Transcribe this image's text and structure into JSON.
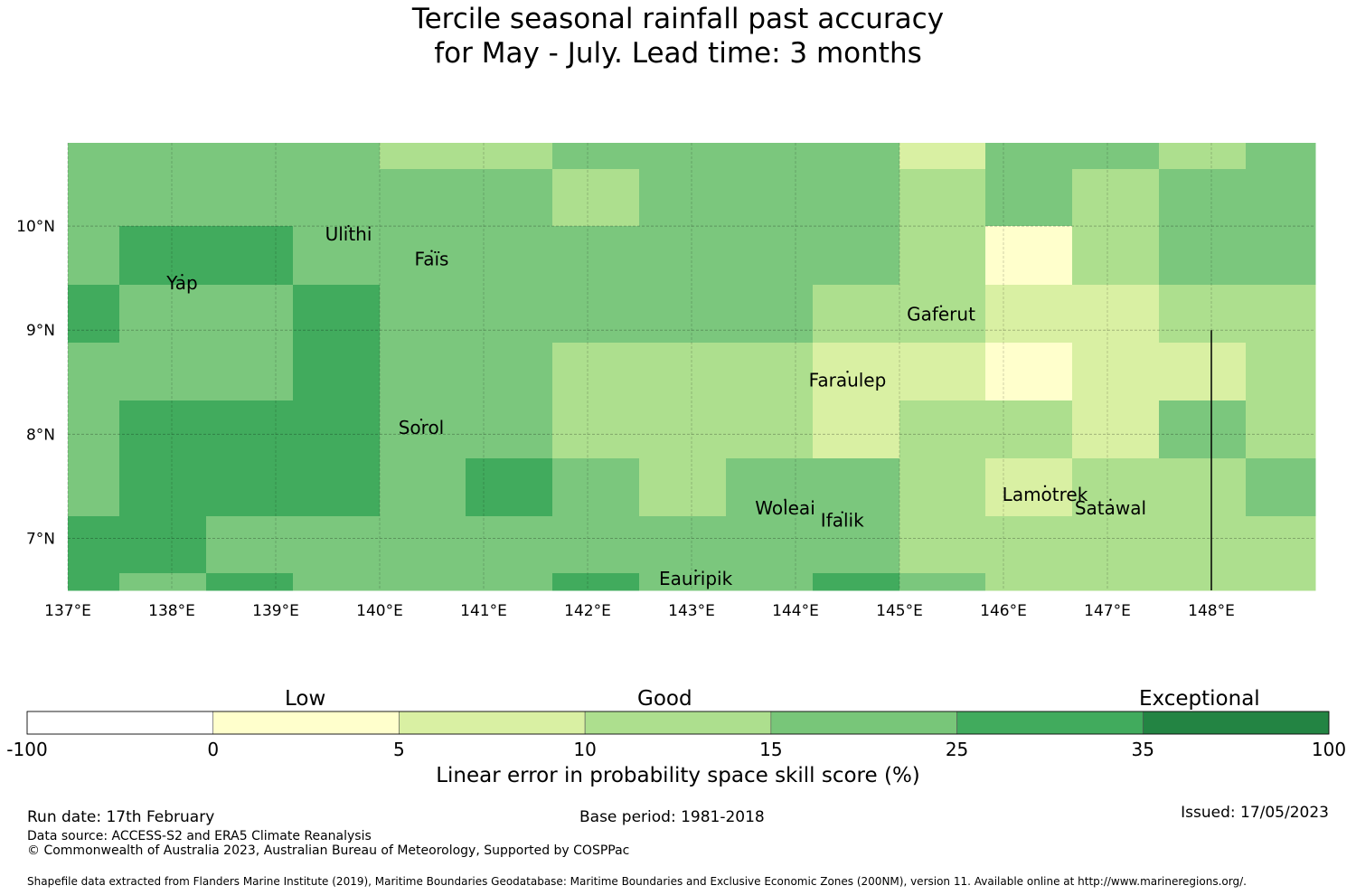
{
  "title_line1": "Tercile seasonal rainfall past accuracy",
  "title_line2": "for May - July. Lead time: 3 months",
  "map": {
    "lon_range": [
      137.0,
      149.0
    ],
    "lat_range": [
      6.5,
      10.8
    ],
    "lon_ticks": [
      "137°E",
      "138°E",
      "139°E",
      "140°E",
      "141°E",
      "142°E",
      "143°E",
      "144°E",
      "145°E",
      "146°E",
      "147°E",
      "148°E"
    ],
    "lat_ticks": [
      "10°N",
      "9°N",
      "8°N",
      "7°N"
    ],
    "grid": true,
    "islands": [
      {
        "name": "Yap",
        "lon": 138.1,
        "lat": 9.53
      },
      {
        "name": "Ulithi",
        "lon": 139.7,
        "lat": 10.0
      },
      {
        "name": "Faïs",
        "lon": 140.5,
        "lat": 9.76
      },
      {
        "name": "Gaferut",
        "lon": 145.4,
        "lat": 9.23
      },
      {
        "name": "Faraulep",
        "lon": 144.5,
        "lat": 8.6
      },
      {
        "name": "Sorol",
        "lon": 140.4,
        "lat": 8.14
      },
      {
        "name": "Woleai",
        "lon": 143.9,
        "lat": 7.37
      },
      {
        "name": "Ifalik",
        "lon": 144.45,
        "lat": 7.25
      },
      {
        "name": "Lamotrek",
        "lon": 146.4,
        "lat": 7.5
      },
      {
        "name": "Satawal",
        "lon": 147.03,
        "lat": 7.37
      },
      {
        "name": "Eauripik",
        "lon": 143.04,
        "lat": 6.69
      }
    ],
    "boundary_line": {
      "lon": 148.0,
      "lat_from": 9.0,
      "lat_to": 6.5
    },
    "cell_colors": {
      "A": "#7bc77d",
      "B": "#addf8e",
      "C": "#41ab5d",
      "D": "#d9f0a3",
      "E": "#ffffcc"
    }
  },
  "colorbar": {
    "categories": [
      "Low",
      "Good",
      "Exceptional"
    ],
    "boundaries": [
      "-100",
      "0",
      "5",
      "10",
      "15",
      "25",
      "35",
      "100"
    ],
    "colors": [
      "#ffffff",
      "#ffffcc",
      "#d9f0a3",
      "#addf8e",
      "#78c679",
      "#41ab5d",
      "#238443"
    ],
    "label": "Linear error in probability space skill score (%)"
  },
  "footer": {
    "run_date": "Run date: 17th February",
    "base_period": "Base period: 1981-2018",
    "issued": "Issued: 17/05/2023",
    "data_source": "Data source: ACCESS-S2 and ERA5 Climate Reanalysis",
    "copyright": "© Commonwealth of Australia 2023, Australian Bureau of Meteorology, Supported by COSPPac",
    "shapefile": "Shapefile data extracted from Flanders Marine Institute (2019), Maritime Boundaries Geodatabase: Maritime Boundaries and Exclusive Economic Zones (200NM), version 11. Available online at http://www.marineregions.org/."
  }
}
